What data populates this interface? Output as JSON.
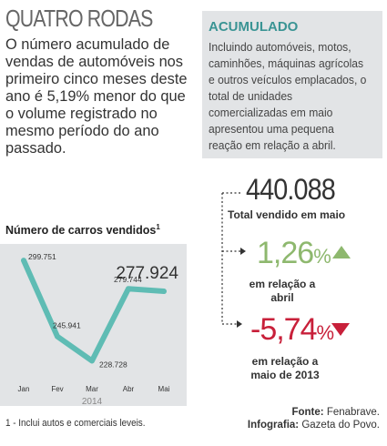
{
  "header": {
    "section": "QUATRO RODAS"
  },
  "intro": "O número acumulado de vendas de automóveis nos primeiro cinco meses deste ano é 5,19% menor do que o volume registrado no mesmo período do ano passado.",
  "chart_title": "Número de carros vendidos",
  "chart_title_note": "1",
  "footnote": "1 - Inclui autos e comerciais leveis.",
  "sidebar": {
    "title": "ACUMULADO",
    "text": "Incluindo automóveis, motos, caminhões, máquinas agrícolas e outros veículos emplacados, o total de unidades comercializadas em maio apresentou uma pequena reação em relação a abril."
  },
  "kpis": {
    "total_value": "440.088",
    "total_label": "Total vendido em maio",
    "up_value": "1,26",
    "up_unit": "%",
    "up_label": "em relação a abril",
    "down_value": "-5,74",
    "down_unit": "%",
    "down_label": "em relação a maio de 2013"
  },
  "source": {
    "fonte_label": "Fonte:",
    "fonte_value": "Fenabrave.",
    "infografia_label": "Infografia:",
    "infografia_value": "Gazeta do Povo."
  },
  "colors": {
    "line": "#5fbcb4",
    "up": "#8eb86e",
    "down": "#c8203a",
    "accent": "#3a9494",
    "panel": "#e2e4e6"
  },
  "chart_data": {
    "type": "line",
    "title": "Número de carros vendidos",
    "categories": [
      "Jan",
      "Fev",
      "Mar",
      "Abr",
      "Mai"
    ],
    "values": [
      299751,
      245941,
      228728,
      279744,
      277924
    ],
    "value_labels": [
      "299.751",
      "245.941",
      "228.728",
      "279.744",
      "277.924"
    ],
    "year_label": "2014",
    "ylim": [
      220000,
      305000
    ],
    "grid": false
  }
}
